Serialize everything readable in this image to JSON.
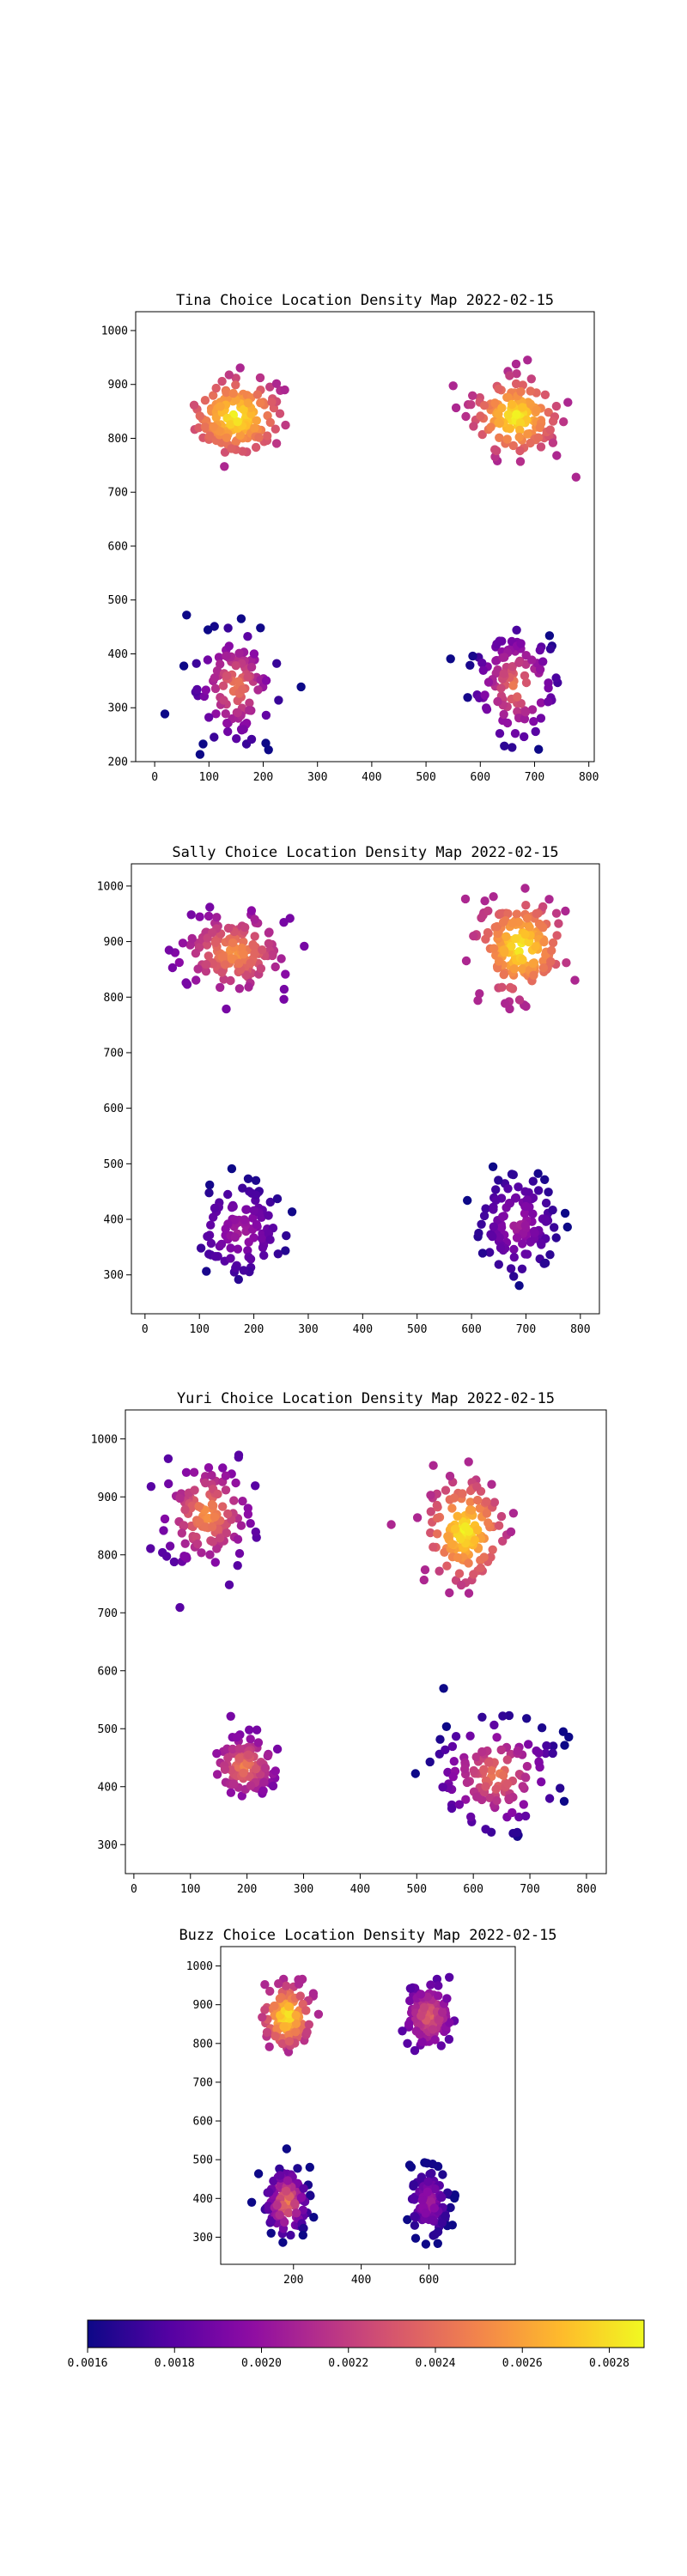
{
  "chart_data": [
    {
      "type": "scatter",
      "title": "Tina Choice Location Density Map 2022-02-15",
      "xlabel": "",
      "ylabel": "",
      "xlim": [
        -35,
        810
      ],
      "ylim": [
        200,
        1035
      ],
      "xticks": [
        0,
        100,
        200,
        300,
        400,
        500,
        600,
        700,
        800
      ],
      "yticks": [
        200,
        300,
        400,
        500,
        600,
        700,
        800,
        900,
        1000
      ],
      "clusters": [
        {
          "center": [
            150,
            840
          ],
          "spread": [
            45,
            38
          ],
          "count": 150,
          "color_range": [
            0.0021,
            0.0029
          ]
        },
        {
          "center": [
            665,
            840
          ],
          "spread": [
            42,
            38
          ],
          "count": 150,
          "color_range": [
            0.0021,
            0.0029
          ]
        },
        {
          "center": [
            150,
            340
          ],
          "spread": [
            40,
            55
          ],
          "count": 110,
          "color_range": [
            0.0016,
            0.0025
          ]
        },
        {
          "center": [
            665,
            340
          ],
          "spread": [
            40,
            55
          ],
          "count": 110,
          "color_range": [
            0.0016,
            0.0025
          ]
        }
      ]
    },
    {
      "type": "scatter",
      "title": "Sally Choice Location Density Map 2022-02-15",
      "xlabel": "",
      "ylabel": "",
      "xlim": [
        -25,
        835
      ],
      "ylim": [
        230,
        1040
      ],
      "xticks": [
        0,
        100,
        200,
        300,
        400,
        500,
        600,
        700,
        800
      ],
      "yticks": [
        300,
        400,
        500,
        600,
        700,
        800,
        900,
        1000
      ],
      "clusters": [
        {
          "center": [
            165,
            880
          ],
          "spread": [
            50,
            38
          ],
          "count": 150,
          "color_range": [
            0.0019,
            0.0026
          ]
        },
        {
          "center": [
            690,
            890
          ],
          "spread": [
            42,
            45
          ],
          "count": 170,
          "color_range": [
            0.0021,
            0.0029
          ]
        },
        {
          "center": [
            175,
            380
          ],
          "spread": [
            45,
            45
          ],
          "count": 100,
          "color_range": [
            0.0016,
            0.0021
          ]
        },
        {
          "center": [
            685,
            390
          ],
          "spread": [
            38,
            48
          ],
          "count": 110,
          "color_range": [
            0.0016,
            0.0021
          ]
        }
      ]
    },
    {
      "type": "scatter",
      "title": "Yuri Choice Location Density Map 2022-02-15",
      "xlabel": "",
      "ylabel": "",
      "xlim": [
        -15,
        835
      ],
      "ylim": [
        250,
        1050
      ],
      "xticks": [
        0,
        100,
        200,
        300,
        400,
        500,
        600,
        700,
        800
      ],
      "yticks": [
        300,
        400,
        500,
        600,
        700,
        800,
        900,
        1000
      ],
      "clusters": [
        {
          "center": [
            130,
            870
          ],
          "spread": [
            40,
            45
          ],
          "count": 130,
          "color_range": [
            0.0018,
            0.0026
          ]
        },
        {
          "center": [
            585,
            840
          ],
          "spread": [
            35,
            45
          ],
          "count": 140,
          "color_range": [
            0.0021,
            0.0029
          ]
        },
        {
          "center": [
            195,
            435
          ],
          "spread": [
            28,
            25
          ],
          "count": 110,
          "color_range": [
            0.0019,
            0.0025
          ]
        },
        {
          "center": [
            640,
            420
          ],
          "spread": [
            55,
            50
          ],
          "count": 130,
          "color_range": [
            0.0016,
            0.0025
          ]
        }
      ]
    },
    {
      "type": "scatter",
      "title": "Buzz Choice Location Density Map 2022-02-15",
      "xlabel": "",
      "ylabel": "",
      "xlim": [
        -15,
        855
      ],
      "ylim": [
        230,
        1050
      ],
      "xticks": [
        200,
        400,
        600
      ],
      "yticks": [
        300,
        400,
        500,
        600,
        700,
        800,
        900,
        1000
      ],
      "clusters": [
        {
          "center": [
            180,
            870
          ],
          "spread": [
            35,
            40
          ],
          "count": 140,
          "color_range": [
            0.0021,
            0.0029
          ]
        },
        {
          "center": [
            600,
            870
          ],
          "spread": [
            35,
            40
          ],
          "count": 130,
          "color_range": [
            0.0018,
            0.0024
          ]
        },
        {
          "center": [
            180,
            390
          ],
          "spread": [
            32,
            45
          ],
          "count": 130,
          "color_range": [
            0.0016,
            0.0025
          ]
        },
        {
          "center": [
            600,
            390
          ],
          "spread": [
            30,
            45
          ],
          "count": 130,
          "color_range": [
            0.0016,
            0.0021
          ]
        }
      ]
    }
  ],
  "colorbar": {
    "colormap": "plasma",
    "range": [
      0.0016,
      0.00288
    ],
    "ticks": [
      0.0016,
      0.0018,
      0.002,
      0.0022,
      0.0024,
      0.0026,
      0.0028
    ],
    "tick_labels": [
      "0.0016",
      "0.0018",
      "0.0020",
      "0.0022",
      "0.0024",
      "0.0026",
      "0.0028"
    ]
  },
  "colors": {
    "plasma_stops": [
      "#0d0887",
      "#5302a3",
      "#8b0aa5",
      "#b83289",
      "#db5c68",
      "#f48849",
      "#febd2a",
      "#f0f921"
    ]
  }
}
